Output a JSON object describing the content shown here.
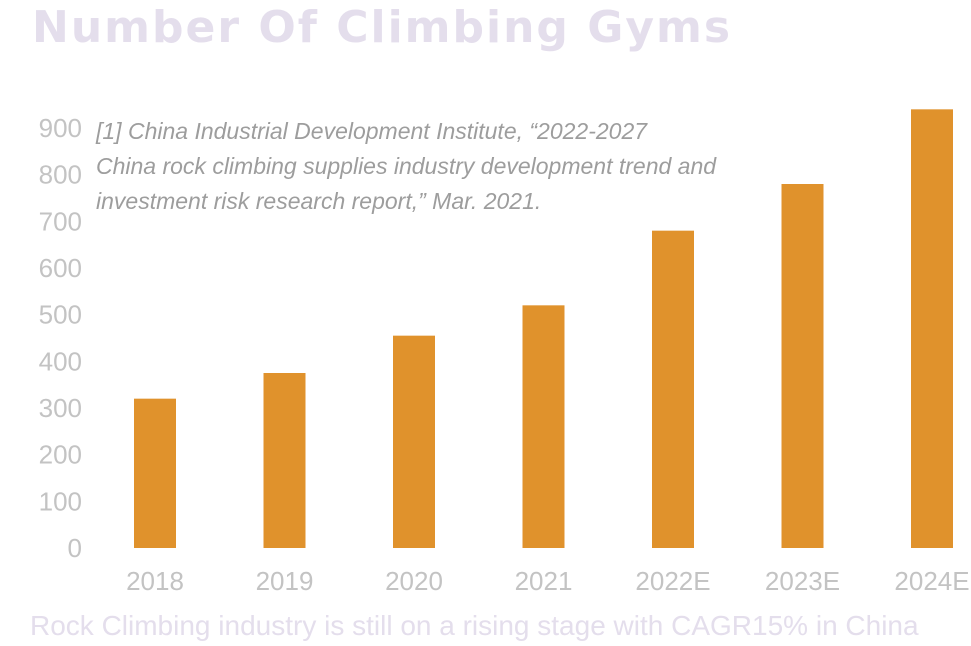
{
  "header": {
    "title": "Number Of Climbing Gyms"
  },
  "note": {
    "line1": "[1] China Industrial Development Institute, “2022-2027",
    "line2": "China rock climbing supplies industry development trend and",
    "line3": "investment risk research report,” Mar. 2021."
  },
  "footer": {
    "subtitle": "Rock Climbing industry is still on a rising stage with CAGR15% in China"
  },
  "colors": {
    "bar": "#e0922c",
    "tick": "#c3c3c3",
    "title": "#e4deec"
  },
  "chart_data": {
    "type": "bar",
    "title": "Number Of Climbing Gyms",
    "categories": [
      "2018",
      "2019",
      "2020",
      "2021",
      "2022E",
      "2023E",
      "2024E"
    ],
    "values": [
      320,
      375,
      455,
      520,
      680,
      780,
      940
    ],
    "yticks": [
      0,
      100,
      200,
      300,
      400,
      500,
      600,
      700,
      800,
      900
    ],
    "ylim": [
      0,
      900
    ],
    "grid": false,
    "legend": "none"
  }
}
